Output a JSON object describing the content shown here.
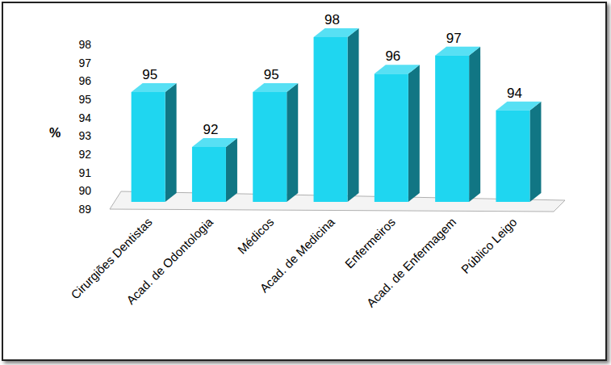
{
  "chart_data": {
    "type": "bar",
    "y_label": "%",
    "categories": [
      "Cirurgiões Dentistas",
      "Acad. de Odontologia",
      "Médicos",
      "Acad. de Medicina",
      "Enfermeiros",
      "Acad. de Enfermagem",
      "Público Leigo"
    ],
    "values": [
      95,
      92,
      95,
      98,
      96,
      97,
      94
    ],
    "color": "#1fd6f0",
    "ylim": [
      89,
      98
    ],
    "yticks": [
      89,
      90,
      91,
      92,
      93,
      94,
      95,
      96,
      97,
      98
    ],
    "grid": false,
    "data_labels": true
  }
}
